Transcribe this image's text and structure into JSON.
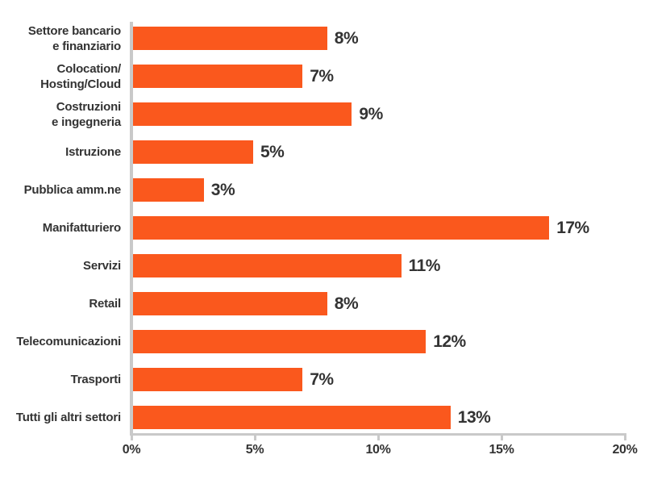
{
  "chart_data": {
    "type": "bar",
    "orientation": "horizontal",
    "title": "",
    "xlabel": "",
    "ylabel": "",
    "grid": false,
    "legend": null,
    "categories": [
      "Settore bancario\ne finanziario",
      "Colocation/\nHosting/Cloud",
      "Costruzioni\ne ingegneria",
      "Istruzione",
      "Pubblica amm.ne",
      "Manifatturiero",
      "Servizi",
      "Retail",
      "Telecomunicazioni",
      "Trasporti",
      "Tutti gli altri settori"
    ],
    "values": [
      8,
      7,
      9,
      5,
      3,
      17,
      11,
      8,
      12,
      7,
      13
    ],
    "value_labels": [
      "8%",
      "7%",
      "9%",
      "5%",
      "3%",
      "17%",
      "11%",
      "8%",
      "12%",
      "7%",
      "13%"
    ],
    "x_ticks": [
      {
        "value": 0,
        "label": "0%"
      },
      {
        "value": 5,
        "label": "5%"
      },
      {
        "value": 10,
        "label": "10%"
      },
      {
        "value": 15,
        "label": "15%"
      },
      {
        "value": 20,
        "label": "20%"
      }
    ],
    "xlim": [
      0,
      20
    ],
    "bar_color": "#FA581D",
    "axis_color": "#C9C9C9",
    "text_color": "#333333"
  }
}
